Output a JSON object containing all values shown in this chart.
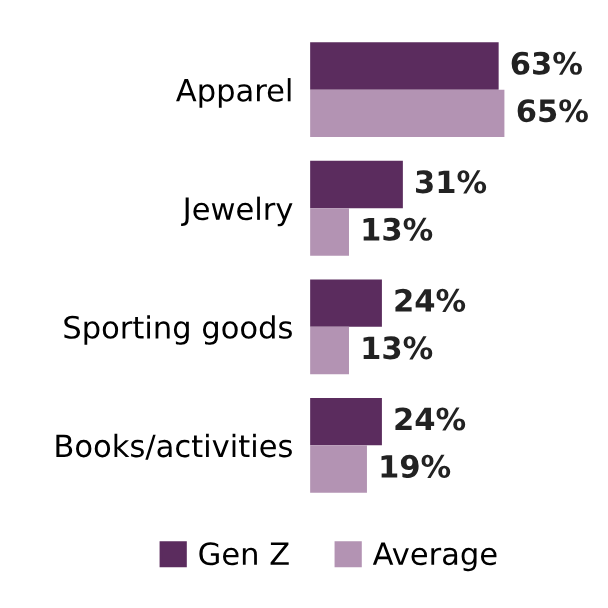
{
  "chart_data": {
    "type": "bar",
    "orientation": "horizontal",
    "categories": [
      "Apparel",
      "Jewelry",
      "Sporting goods",
      "Books/activities"
    ],
    "series": [
      {
        "name": "Gen Z",
        "color": "#5b2c5e",
        "values": [
          63,
          31,
          24,
          24
        ],
        "value_labels": [
          "63%",
          "31%",
          "24%",
          "24%"
        ]
      },
      {
        "name": "Average",
        "color": "#b393b3",
        "values": [
          65,
          13,
          13,
          19
        ],
        "value_labels": [
          "65%",
          "13%",
          "13%",
          "19%"
        ]
      }
    ],
    "legend": "bottom",
    "grid": false
  }
}
